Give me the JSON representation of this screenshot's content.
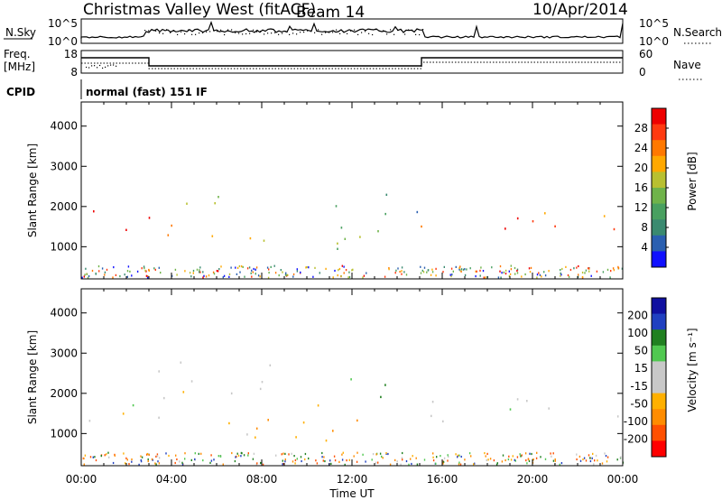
{
  "header": {
    "station": "Christmas Valley West (fitACF)",
    "beam": "Beam 14",
    "date": "10/Apr/2014"
  },
  "top_panels": {
    "nsky_label": "N.Sky",
    "nsky_ticks": [
      "10^5",
      "10^0"
    ],
    "nsearch_label": "N.Search",
    "nsearch_ticks": [
      "10^5",
      "10^0"
    ],
    "freq_label_1": "Freq.",
    "freq_label_2": "[MHz]",
    "freq_ticks": [
      "18",
      "8"
    ],
    "nave_label": "Nave",
    "nave_ticks": [
      "60",
      "0"
    ],
    "cpid_label": "CPID",
    "cpid_text": "normal (fast) 151 IF"
  },
  "colors": {
    "power_scale": [
      "#1010ff",
      "#2a5fb0",
      "#3a8a70",
      "#49a060",
      "#6fb34a",
      "#b8c030",
      "#ffa800",
      "#ff7800",
      "#ff3a10",
      "#ee0000"
    ],
    "velocity_scale": [
      "#ff0000",
      "#ff5000",
      "#ff8c00",
      "#ffb000",
      "#c8c8c8",
      "#c8c8c8",
      "#50c850",
      "#208020",
      "#2040c0",
      "#1010a0"
    ]
  },
  "chart_data": [
    {
      "type": "heatmap",
      "panel": "power",
      "ylabel": "Slant Range [km]",
      "xlabel": "",
      "x_ticks": [
        "00:00",
        "04:00",
        "08:00",
        "12:00",
        "16:00",
        "20:00",
        "00:00"
      ],
      "y_ticks": [
        "1000",
        "2000",
        "3000",
        "4000"
      ],
      "ylim": [
        200,
        4600
      ],
      "xlim_hours": [
        0,
        24
      ],
      "colorbar_label": "Power [dB]",
      "colorbar_ticks": [
        "4",
        "8",
        "12",
        "16",
        "20",
        "24",
        "28"
      ],
      "colorbar_range": [
        0,
        32
      ],
      "scatter_bands": [
        {
          "t0": 0.0,
          "t1": 3.0,
          "r0": 1200,
          "r1": 2000,
          "level": 28
        },
        {
          "t0": 3.0,
          "t1": 6.5,
          "r0": 1000,
          "r1": 2500,
          "level": 20
        },
        {
          "t0": 6.0,
          "t1": 12.5,
          "r0": 800,
          "r1": 1800,
          "level": 16
        },
        {
          "t0": 9.5,
          "t1": 12.5,
          "r0": 2000,
          "r1": 2400,
          "level": 8
        },
        {
          "t0": 12.5,
          "t1": 15.0,
          "r0": 1200,
          "r1": 2800,
          "level": 12
        },
        {
          "t0": 15.0,
          "t1": 24.0,
          "r0": 1300,
          "r1": 2100,
          "level": 26
        }
      ]
    },
    {
      "type": "heatmap",
      "panel": "velocity",
      "ylabel": "Slant Range [km]",
      "xlabel": "Time UT",
      "x_ticks": [
        "00:00",
        "04:00",
        "08:00",
        "12:00",
        "16:00",
        "20:00",
        "00:00"
      ],
      "y_ticks": [
        "1000",
        "2000",
        "3000",
        "4000"
      ],
      "ylim": [
        200,
        4600
      ],
      "xlim_hours": [
        0,
        24
      ],
      "colorbar_label": "Velocity [m s⁻¹]",
      "colorbar_ticks": [
        "200",
        "100",
        "50",
        "15",
        "-15",
        "-50",
        "-100",
        "-200"
      ],
      "scatter_bands": [
        {
          "t0": 0.0,
          "t1": 3.0,
          "r0": 1200,
          "r1": 2000,
          "vel": 0
        },
        {
          "t0": 3.0,
          "t1": 8.5,
          "r0": 900,
          "r1": 2800,
          "vel": 0
        },
        {
          "t0": 5.5,
          "t1": 12.5,
          "r0": 600,
          "r1": 1800,
          "vel": -50
        },
        {
          "t0": 9.5,
          "t1": 12.5,
          "r0": 2000,
          "r1": 2400,
          "vel": 50
        },
        {
          "t0": 12.8,
          "t1": 14.0,
          "r0": 1200,
          "r1": 2800,
          "vel": 50
        },
        {
          "t0": 15.0,
          "t1": 24.0,
          "r0": 1300,
          "r1": 2100,
          "vel": 0
        }
      ]
    }
  ]
}
